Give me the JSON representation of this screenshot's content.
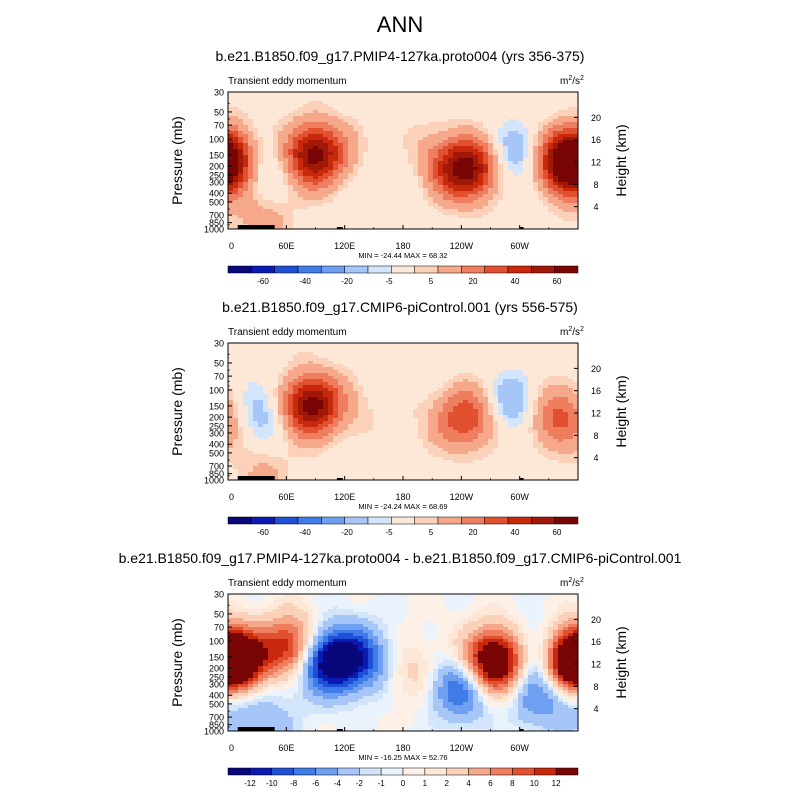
{
  "title": "ANN",
  "panel_titles": [
    "b.e21.B1850.f09_g17.PMIP4-127ka.proto004 (yrs 356-375)",
    "b.e21.B1850.f09_g17.CMIP6-piControl.001 (yrs 556-575)",
    "b.e21.B1850.f09_g17.PMIP4-127ka.proto004 - b.e21.B1850.f09_g17.CMIP6-piControl.001"
  ],
  "chart_data": [
    {
      "type": "heatmap",
      "title": "b.e21.B1850.f09_g17.PMIP4-127ka.proto004 (yrs 356-375)",
      "subtitle_left": "Transient eddy momentum",
      "units": "m2/s2",
      "units_base": "m",
      "units_sup1": "2",
      "units_mid": "/s",
      "units_sup2": "2",
      "ylabel": "Pressure (mb)",
      "ylabel_right": "Height (km)",
      "xticks": [
        "0",
        "60E",
        "120E",
        "180",
        "120W",
        "60W"
      ],
      "yticks": [
        "30",
        "50",
        "70",
        "100",
        "150",
        "200",
        "250",
        "300",
        "400",
        "500",
        "700",
        "850",
        "1000"
      ],
      "yticks_right": [
        "20",
        "16",
        "12",
        "8",
        "4"
      ],
      "stats": "MIN = -24.44  MAX = 68.32",
      "min": -24.44,
      "max": 68.32,
      "colorbar_labels": [
        "-60",
        "-40",
        "-20",
        "-5",
        "5",
        "20",
        "40",
        "60"
      ],
      "features": [
        {
          "lon": 0,
          "p": 165,
          "value": 58
        },
        {
          "lon": 88,
          "p": 150,
          "value": 68
        },
        {
          "lon": 255,
          "p": 210,
          "value": 48
        },
        {
          "lon": 232,
          "p": 205,
          "value": 35
        },
        {
          "lon": 350,
          "p": 200,
          "value": 55
        },
        {
          "lon": 285,
          "p": 150,
          "value": -22
        },
        {
          "lon": 17,
          "p": 175,
          "value": -15
        },
        {
          "lon": 30,
          "p": 230,
          "value": -10
        },
        {
          "lon": 58,
          "p": 160,
          "value": -6
        },
        {
          "lon": 160,
          "p": 200,
          "value": -4
        },
        {
          "lon": 300,
          "p": 280,
          "value": -6
        },
        {
          "lon": 35,
          "p": 860,
          "value": 15
        },
        {
          "lon": 140,
          "p": 120,
          "value": 4
        },
        {
          "lon": 190,
          "p": 100,
          "value": 3
        }
      ]
    },
    {
      "type": "heatmap",
      "title": "b.e21.B1850.f09_g17.CMIP6-piControl.001 (yrs 556-575)",
      "subtitle_left": "Transient eddy momentum",
      "units": "m2/s2",
      "units_base": "m",
      "units_sup1": "2",
      "units_mid": "/s",
      "units_sup2": "2",
      "ylabel": "Pressure (mb)",
      "ylabel_right": "Height (km)",
      "xticks": [
        "0",
        "60E",
        "120E",
        "180",
        "120W",
        "60W"
      ],
      "yticks": [
        "30",
        "50",
        "70",
        "100",
        "150",
        "200",
        "250",
        "300",
        "400",
        "500",
        "700",
        "850",
        "1000"
      ],
      "yticks_right": [
        "20",
        "16",
        "12",
        "8",
        "4"
      ],
      "stats": "MIN = -24.24  MAX = 68.69",
      "min": -24.24,
      "max": 68.69,
      "colorbar_labels": [
        "-60",
        "-40",
        "-20",
        "-5",
        "5",
        "20",
        "40",
        "60"
      ],
      "features": [
        {
          "lon": 85,
          "p": 150,
          "value": 68
        },
        {
          "lon": 245,
          "p": 205,
          "value": 40
        },
        {
          "lon": 335,
          "p": 205,
          "value": 32
        },
        {
          "lon": 5,
          "p": 160,
          "value": 12
        },
        {
          "lon": 30,
          "p": 160,
          "value": -22
        },
        {
          "lon": 295,
          "p": 150,
          "value": -23
        },
        {
          "lon": 140,
          "p": 130,
          "value": 5
        },
        {
          "lon": 35,
          "p": 860,
          "value": 12
        },
        {
          "lon": 200,
          "p": 250,
          "value": 3
        },
        {
          "lon": 60,
          "p": 260,
          "value": -4
        }
      ]
    },
    {
      "type": "heatmap",
      "title": "b.e21.B1850.f09_g17.PMIP4-127ka.proto004 - b.e21.B1850.f09_g17.CMIP6-piControl.001",
      "subtitle_left": "Transient eddy momentum",
      "units": "m2/s2",
      "units_base": "m",
      "units_sup1": "2",
      "units_mid": "/s",
      "units_sup2": "2",
      "ylabel": "Pressure (mb)",
      "ylabel_right": "Height (km)",
      "xticks": [
        "0",
        "60E",
        "120E",
        "180",
        "120W",
        "60W"
      ],
      "yticks": [
        "30",
        "50",
        "70",
        "100",
        "150",
        "200",
        "250",
        "300",
        "400",
        "500",
        "700",
        "850",
        "1000"
      ],
      "yticks_right": [
        "20",
        "16",
        "12",
        "8",
        "4"
      ],
      "stats": "MIN = -16.25  MAX = 52.76",
      "min": -16.25,
      "max": 52.76,
      "colorbar_labels": [
        "-12",
        "-10",
        "-8",
        "-6",
        "-4",
        "-2",
        "-1",
        "0",
        "1",
        "2",
        "4",
        "6",
        "8",
        "10",
        "12"
      ],
      "features": [
        {
          "lon": 10,
          "p": 165,
          "value": 18
        },
        {
          "lon": 350,
          "p": 165,
          "value": 16
        },
        {
          "lon": 65,
          "p": 120,
          "value": 14
        },
        {
          "lon": 100,
          "p": 160,
          "value": -15
        },
        {
          "lon": 135,
          "p": 160,
          "value": -9
        },
        {
          "lon": 275,
          "p": 170,
          "value": 20
        },
        {
          "lon": 240,
          "p": 330,
          "value": -9
        },
        {
          "lon": 320,
          "p": 150,
          "value": -8
        },
        {
          "lon": 320,
          "p": 400,
          "value": -6
        },
        {
          "lon": 190,
          "p": 220,
          "value": 3
        },
        {
          "lon": 5,
          "p": 400,
          "value": -4
        },
        {
          "lon": 40,
          "p": 950,
          "value": -3
        },
        {
          "lon": 55,
          "p": 250,
          "value": -2
        },
        {
          "lon": 30,
          "p": 110,
          "value": -2
        }
      ]
    }
  ],
  "colors": {
    "abs_levels": [
      "#08087a",
      "#0b1ab2",
      "#1f4fd6",
      "#3f7ce8",
      "#6e9ff0",
      "#a5c6f7",
      "#d2e5fa",
      "#fde8d8",
      "#fbd1ba",
      "#f6a98a",
      "#ef7d5f",
      "#e2512f",
      "#c8280c",
      "#a01808",
      "#7a0505"
    ],
    "diff_levels": [
      "#08087a",
      "#0b1ab2",
      "#1f4fd6",
      "#3f7ce8",
      "#6e9ff0",
      "#a5c6f7",
      "#d2e5fa",
      "#eaf2fc",
      "#fdf0e6",
      "#fde8d8",
      "#fbd1ba",
      "#f6a98a",
      "#ef7d5f",
      "#e2512f",
      "#c8280c",
      "#7a0505"
    ]
  }
}
